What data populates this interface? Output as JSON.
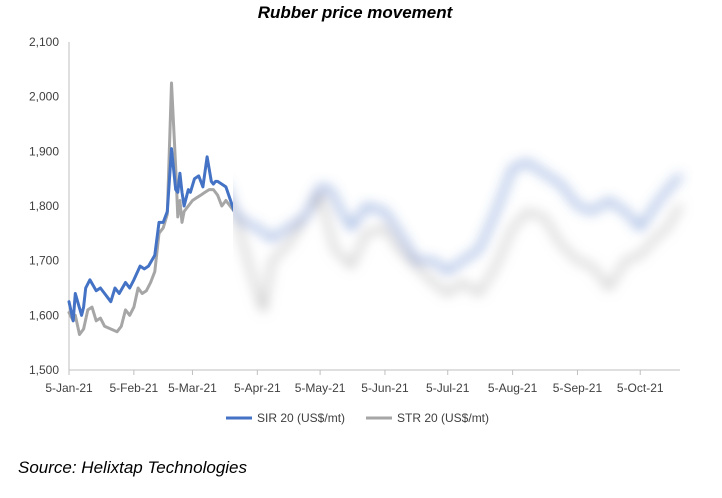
{
  "chart_data": {
    "type": "line",
    "title": "Rubber price movement",
    "xlabel": "",
    "ylabel": "",
    "ylim": [
      1500,
      2100
    ],
    "yticks": [
      "1,500",
      "1,600",
      "1,700",
      "1,800",
      "1,900",
      "2,000",
      "2,100"
    ],
    "xticks": [
      "5-Jan-21",
      "5-Feb-21",
      "5-Mar-21",
      "5-Apr-21",
      "5-May-21",
      "5-Jun-21",
      "5-Jul-21",
      "5-Aug-21",
      "5-Sep-21",
      "5-Oct-21"
    ],
    "xlim": [
      "2021-01-05",
      "2021-10-24"
    ],
    "grid": false,
    "legend_position": "bottom",
    "blurred_after": "2021-03-21",
    "series": [
      {
        "name": "SIR 20 (US$/mt)",
        "color": "#4472c4",
        "x": [
          "2021-01-05",
          "2021-01-07",
          "2021-01-08",
          "2021-01-11",
          "2021-01-12",
          "2021-01-13",
          "2021-01-15",
          "2021-01-18",
          "2021-01-20",
          "2021-01-22",
          "2021-01-25",
          "2021-01-27",
          "2021-01-29",
          "2021-02-01",
          "2021-02-03",
          "2021-02-05",
          "2021-02-08",
          "2021-02-10",
          "2021-02-12",
          "2021-02-15",
          "2021-02-17",
          "2021-02-19",
          "2021-02-21",
          "2021-02-23",
          "2021-02-25",
          "2021-02-26",
          "2021-02-27",
          "2021-02-28",
          "2021-03-01",
          "2021-03-03",
          "2021-03-04",
          "2021-03-06",
          "2021-03-08",
          "2021-03-10",
          "2021-03-12",
          "2021-03-14",
          "2021-03-15",
          "2021-03-16",
          "2021-03-17",
          "2021-03-19",
          "2021-03-21",
          "2021-03-25",
          "2021-03-30",
          "2021-04-05",
          "2021-04-12",
          "2021-04-20",
          "2021-04-28",
          "2021-05-05",
          "2021-05-10",
          "2021-05-15",
          "2021-05-20",
          "2021-05-27",
          "2021-06-05",
          "2021-06-12",
          "2021-06-20",
          "2021-06-28",
          "2021-07-05",
          "2021-07-12",
          "2021-07-20",
          "2021-07-28",
          "2021-08-05",
          "2021-08-12",
          "2021-08-20",
          "2021-08-28",
          "2021-09-05",
          "2021-09-12",
          "2021-09-20",
          "2021-09-28",
          "2021-10-05",
          "2021-10-12",
          "2021-10-18",
          "2021-10-24"
        ],
        "y": [
          1625,
          1590,
          1640,
          1600,
          1615,
          1650,
          1665,
          1645,
          1650,
          1640,
          1625,
          1650,
          1640,
          1660,
          1650,
          1665,
          1690,
          1685,
          1690,
          1710,
          1770,
          1770,
          1790,
          1905,
          1830,
          1825,
          1860,
          1825,
          1800,
          1830,
          1825,
          1850,
          1855,
          1835,
          1890,
          1845,
          1840,
          1845,
          1845,
          1840,
          1835,
          1790,
          1770,
          1760,
          1740,
          1760,
          1780,
          1835,
          1830,
          1790,
          1760,
          1800,
          1790,
          1750,
          1700,
          1700,
          1680,
          1700,
          1720,
          1790,
          1870,
          1880,
          1860,
          1840,
          1800,
          1790,
          1810,
          1790,
          1760,
          1800,
          1830,
          1855
        ]
      },
      {
        "name": "STR 20 (US$/mt)",
        "color": "#a6a6a6",
        "x": [
          "2021-01-05",
          "2021-01-07",
          "2021-01-08",
          "2021-01-10",
          "2021-01-12",
          "2021-01-14",
          "2021-01-16",
          "2021-01-18",
          "2021-01-20",
          "2021-01-22",
          "2021-01-25",
          "2021-01-28",
          "2021-01-30",
          "2021-02-01",
          "2021-02-03",
          "2021-02-05",
          "2021-02-07",
          "2021-02-09",
          "2021-02-11",
          "2021-02-13",
          "2021-02-15",
          "2021-02-17",
          "2021-02-19",
          "2021-02-21",
          "2021-02-23",
          "2021-02-25",
          "2021-02-26",
          "2021-02-27",
          "2021-02-28",
          "2021-03-01",
          "2021-03-03",
          "2021-03-05",
          "2021-03-07",
          "2021-03-09",
          "2021-03-11",
          "2021-03-13",
          "2021-03-15",
          "2021-03-17",
          "2021-03-19",
          "2021-03-21",
          "2021-03-25",
          "2021-03-30",
          "2021-04-05",
          "2021-04-08",
          "2021-04-12",
          "2021-04-20",
          "2021-04-28",
          "2021-05-05",
          "2021-05-12",
          "2021-05-20",
          "2021-05-27",
          "2021-06-05",
          "2021-06-12",
          "2021-06-20",
          "2021-06-28",
          "2021-07-05",
          "2021-07-12",
          "2021-07-20",
          "2021-07-28",
          "2021-08-05",
          "2021-08-12",
          "2021-08-20",
          "2021-08-28",
          "2021-09-05",
          "2021-09-12",
          "2021-09-20",
          "2021-09-28",
          "2021-10-05",
          "2021-10-12",
          "2021-10-18",
          "2021-10-24"
        ],
        "y": [
          1605,
          1590,
          1600,
          1565,
          1575,
          1610,
          1615,
          1590,
          1595,
          1580,
          1575,
          1570,
          1580,
          1610,
          1600,
          1615,
          1650,
          1640,
          1645,
          1660,
          1680,
          1750,
          1760,
          1785,
          2025,
          1870,
          1780,
          1810,
          1770,
          1790,
          1800,
          1810,
          1815,
          1820,
          1825,
          1830,
          1830,
          1820,
          1800,
          1810,
          1790,
          1720,
          1640,
          1610,
          1700,
          1730,
          1780,
          1820,
          1720,
          1690,
          1750,
          1760,
          1720,
          1690,
          1660,
          1640,
          1660,
          1640,
          1690,
          1760,
          1790,
          1780,
          1730,
          1700,
          1690,
          1650,
          1700,
          1710,
          1740,
          1760,
          1800
        ]
      }
    ]
  },
  "source": "Source: Helixtap Technologies"
}
